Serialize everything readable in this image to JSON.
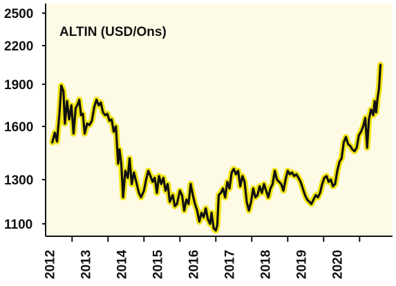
{
  "chart_data": {
    "type": "line",
    "title": "ALTIN (USD/Ons)",
    "xlabel": "",
    "ylabel": "",
    "x_ticks": [
      "2012",
      "2013",
      "2014",
      "2015",
      "2016",
      "2017",
      "2018",
      "2019",
      "2020"
    ],
    "y_ticks": [
      1100,
      1300,
      1600,
      1900,
      2200,
      2500
    ],
    "x_range": [
      2011.4,
      2020.7
    ],
    "scale": "piecewise",
    "grid": false,
    "legend": "none",
    "background": "#fdfbe6",
    "line_color": "#111111",
    "glow_color": "#f2e51a",
    "series": [
      {
        "name": "",
        "points": [
          [
            2011.45,
            1510
          ],
          [
            2011.52,
            1565
          ],
          [
            2011.58,
            1515
          ],
          [
            2011.65,
            1700
          ],
          [
            2011.7,
            1890
          ],
          [
            2011.76,
            1850
          ],
          [
            2011.8,
            1620
          ],
          [
            2011.86,
            1780
          ],
          [
            2011.92,
            1650
          ],
          [
            2011.98,
            1750
          ],
          [
            2012.04,
            1560
          ],
          [
            2012.1,
            1730
          ],
          [
            2012.16,
            1760
          ],
          [
            2012.2,
            1790
          ],
          [
            2012.25,
            1680
          ],
          [
            2012.3,
            1690
          ],
          [
            2012.35,
            1560
          ],
          [
            2012.42,
            1620
          ],
          [
            2012.48,
            1610
          ],
          [
            2012.55,
            1640
          ],
          [
            2012.62,
            1740
          ],
          [
            2012.68,
            1790
          ],
          [
            2012.74,
            1750
          ],
          [
            2012.8,
            1770
          ],
          [
            2012.86,
            1700
          ],
          [
            2012.92,
            1680
          ],
          [
            2012.98,
            1690
          ],
          [
            2013.04,
            1640
          ],
          [
            2013.1,
            1650
          ],
          [
            2013.16,
            1570
          ],
          [
            2013.22,
            1600
          ],
          [
            2013.28,
            1390
          ],
          [
            2013.32,
            1470
          ],
          [
            2013.37,
            1390
          ],
          [
            2013.42,
            1220
          ],
          [
            2013.48,
            1350
          ],
          [
            2013.55,
            1310
          ],
          [
            2013.6,
            1420
          ],
          [
            2013.66,
            1280
          ],
          [
            2013.72,
            1340
          ],
          [
            2013.8,
            1280
          ],
          [
            2013.86,
            1240
          ],
          [
            2013.92,
            1220
          ],
          [
            2014.0,
            1250
          ],
          [
            2014.06,
            1300
          ],
          [
            2014.12,
            1350
          ],
          [
            2014.18,
            1320
          ],
          [
            2014.24,
            1290
          ],
          [
            2014.3,
            1310
          ],
          [
            2014.36,
            1240
          ],
          [
            2014.42,
            1320
          ],
          [
            2014.48,
            1280
          ],
          [
            2014.54,
            1310
          ],
          [
            2014.6,
            1250
          ],
          [
            2014.66,
            1280
          ],
          [
            2014.72,
            1200
          ],
          [
            2014.8,
            1230
          ],
          [
            2014.86,
            1180
          ],
          [
            2014.92,
            1190
          ],
          [
            2015.0,
            1250
          ],
          [
            2015.06,
            1230
          ],
          [
            2015.12,
            1160
          ],
          [
            2015.18,
            1210
          ],
          [
            2015.24,
            1190
          ],
          [
            2015.3,
            1280
          ],
          [
            2015.36,
            1230
          ],
          [
            2015.42,
            1190
          ],
          [
            2015.48,
            1160
          ],
          [
            2015.54,
            1110
          ],
          [
            2015.6,
            1150
          ],
          [
            2015.66,
            1130
          ],
          [
            2015.72,
            1170
          ],
          [
            2015.78,
            1120
          ],
          [
            2015.84,
            1100
          ],
          [
            2015.88,
            1150
          ],
          [
            2015.94,
            1080
          ],
          [
            2016.0,
            1070
          ],
          [
            2016.04,
            1095
          ],
          [
            2016.08,
            1230
          ],
          [
            2016.14,
            1240
          ],
          [
            2016.2,
            1260
          ],
          [
            2016.26,
            1220
          ],
          [
            2016.32,
            1290
          ],
          [
            2016.38,
            1260
          ],
          [
            2016.44,
            1340
          ],
          [
            2016.5,
            1360
          ],
          [
            2016.56,
            1330
          ],
          [
            2016.62,
            1350
          ],
          [
            2016.68,
            1270
          ],
          [
            2016.74,
            1320
          ],
          [
            2016.8,
            1290
          ],
          [
            2016.86,
            1200
          ],
          [
            2016.92,
            1160
          ],
          [
            2016.98,
            1200
          ],
          [
            2017.04,
            1260
          ],
          [
            2017.1,
            1220
          ],
          [
            2017.16,
            1230
          ],
          [
            2017.22,
            1270
          ],
          [
            2017.28,
            1240
          ],
          [
            2017.34,
            1280
          ],
          [
            2017.4,
            1250
          ],
          [
            2017.46,
            1220
          ],
          [
            2017.52,
            1260
          ],
          [
            2017.58,
            1280
          ],
          [
            2017.64,
            1350
          ],
          [
            2017.7,
            1300
          ],
          [
            2017.76,
            1290
          ],
          [
            2017.82,
            1280
          ],
          [
            2017.88,
            1250
          ],
          [
            2017.94,
            1300
          ],
          [
            2018.0,
            1350
          ],
          [
            2018.06,
            1330
          ],
          [
            2018.12,
            1340
          ],
          [
            2018.18,
            1320
          ],
          [
            2018.24,
            1330
          ],
          [
            2018.3,
            1310
          ],
          [
            2018.36,
            1290
          ],
          [
            2018.42,
            1260
          ],
          [
            2018.48,
            1230
          ],
          [
            2018.54,
            1210
          ],
          [
            2018.6,
            1200
          ],
          [
            2018.66,
            1190
          ],
          [
            2018.72,
            1210
          ],
          [
            2018.78,
            1230
          ],
          [
            2018.84,
            1220
          ],
          [
            2018.9,
            1240
          ],
          [
            2018.96,
            1280
          ],
          [
            2019.02,
            1310
          ],
          [
            2019.08,
            1320
          ],
          [
            2019.14,
            1290
          ],
          [
            2019.2,
            1300
          ],
          [
            2019.26,
            1270
          ],
          [
            2019.32,
            1280
          ],
          [
            2019.38,
            1350
          ],
          [
            2019.44,
            1400
          ],
          [
            2019.5,
            1420
          ],
          [
            2019.56,
            1510
          ],
          [
            2019.62,
            1540
          ],
          [
            2019.68,
            1500
          ],
          [
            2019.74,
            1490
          ],
          [
            2019.8,
            1470
          ],
          [
            2019.86,
            1460
          ],
          [
            2019.92,
            1480
          ],
          [
            2019.98,
            1550
          ],
          [
            2020.04,
            1570
          ],
          [
            2020.1,
            1600
          ],
          [
            2020.16,
            1660
          ],
          [
            2020.21,
            1480
          ],
          [
            2020.26,
            1650
          ],
          [
            2020.32,
            1720
          ],
          [
            2020.38,
            1680
          ],
          [
            2020.42,
            1780
          ],
          [
            2020.46,
            1700
          ],
          [
            2020.5,
            1800
          ],
          [
            2020.54,
            1870
          ],
          [
            2020.58,
            2050
          ]
        ]
      }
    ]
  }
}
